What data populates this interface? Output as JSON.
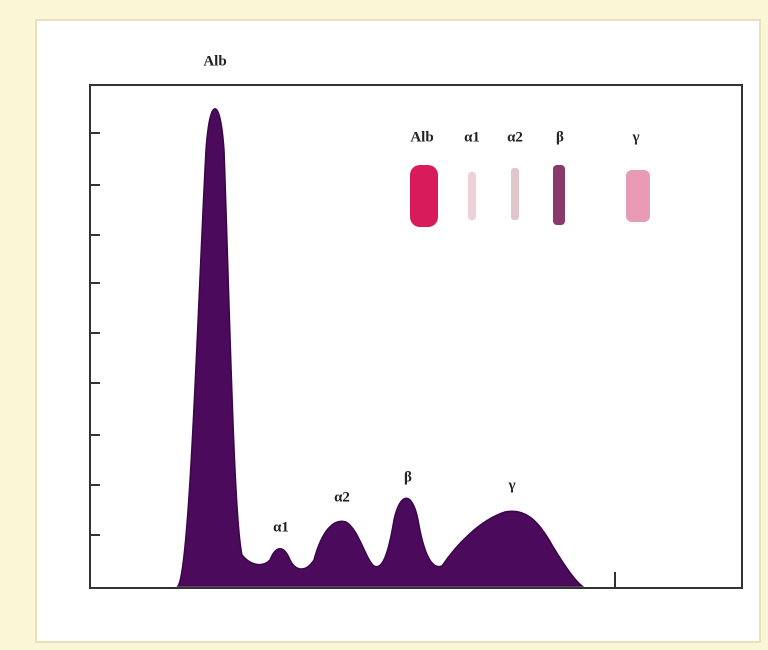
{
  "figure": {
    "peak_labels": [
      "Alb",
      "α1",
      "α2",
      "β",
      "γ"
    ],
    "gel_labels": [
      "Alb",
      "α1",
      "α2",
      "β",
      "γ"
    ]
  }
}
